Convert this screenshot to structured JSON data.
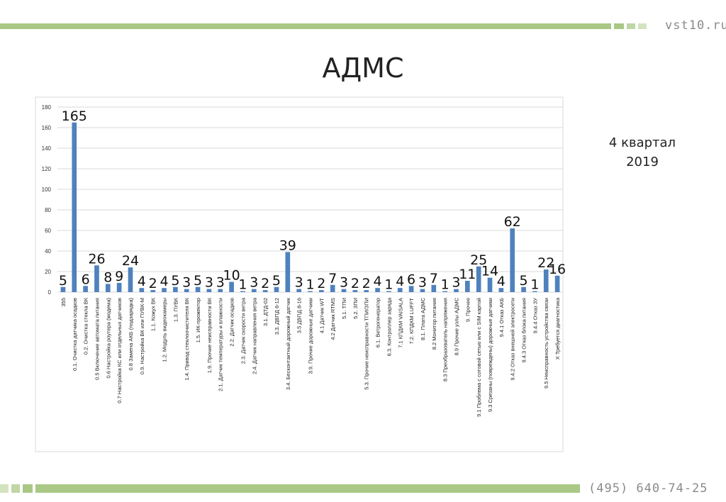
{
  "header": {
    "brand": "vst10.ru"
  },
  "slide": {
    "title": "АДМС",
    "period_line1": "4 квартал",
    "period_line2": "2019"
  },
  "footer": {
    "phone": "(495) 640-74-25"
  },
  "colors": {
    "accent": "#a9c886",
    "accent_light": "#d3e3bf",
    "bar": "#4f81bd"
  },
  "chart_data": {
    "type": "bar",
    "title": "",
    "xlabel": "",
    "ylabel": "",
    "ylim": [
      0,
      180
    ],
    "yticks": [
      0,
      20,
      40,
      60,
      80,
      100,
      120,
      140,
      160,
      180
    ],
    "grid": true,
    "categories": [
      "355",
      "0.1. Очистка датчика осадков",
      "0.2. Очистка стекла ВК",
      "0.5 Включение автомата питания",
      "0.6 Настройка роутера (модема)",
      "0.7 Настройка КС или отдельных датчиков",
      "0.8 Замена АКБ (подзарядка)",
      "0.9. Настройка ВК или ПУВК-М",
      "1.1. Кожух ВК",
      "1.2. Модуль видеокамеры",
      "1.3. ПУВК",
      "1.4. Привод стеклоочистителя ВК",
      "1.5. ИК-прожектор",
      "1.9. Прочие неисправности ВК",
      "2.1. Датчик температуры и влажности",
      "2.2. Датчик осадков",
      "2.3. Датчик скорости ветра",
      "2.4. Датчик направления ветра",
      "3.1. ДТД-02",
      "3.3. ДВПД 6-12",
      "3.4. Бесконтактный дорожный датчик",
      "3.5 ДВПД 8-16",
      "3.9. Прочие дорожные датчики",
      "4.1 Датчик WT",
      "4.2 Датчик RTMS",
      "5.1. ТПИ",
      "5.2. ЗПИ",
      "5.3. Прочие неисправности ТПИ/ЗПИ",
      "6.1. Ветрогенератор",
      "6.3. Контроллер заряда",
      "7.1 КПДКМ VAISALA",
      "7.2. КПДКМ LUFFT",
      "8.1. Плата АДМС",
      "8.2 Монитор питания",
      "8.3 Преобразователь напряжения",
      "8.9 Прочие узлы АДМС",
      "9. Прочее",
      "9.1 Проблема с сотовой сетью или с SIM картой",
      "9.3 Срезаны (повреждены) дорожные датчики",
      "9.4.1 Отказ АКБ",
      "9.4.2 Отказ внешней электросети",
      "9.4.3 Отказ блока питания",
      "9.4.4 Отказ ЗУ",
      "9.5 Неисправность устройства связи",
      "Х Требуется диагностика"
    ],
    "values": [
      5,
      165,
      6,
      26,
      8,
      9,
      24,
      4,
      2,
      4,
      5,
      3,
      5,
      3,
      3,
      10,
      1,
      3,
      2,
      5,
      39,
      3,
      1,
      2,
      7,
      3,
      2,
      2,
      4,
      1,
      4,
      6,
      3,
      7,
      1,
      3,
      11,
      25,
      14,
      4,
      62,
      5,
      1,
      22,
      16
    ]
  }
}
